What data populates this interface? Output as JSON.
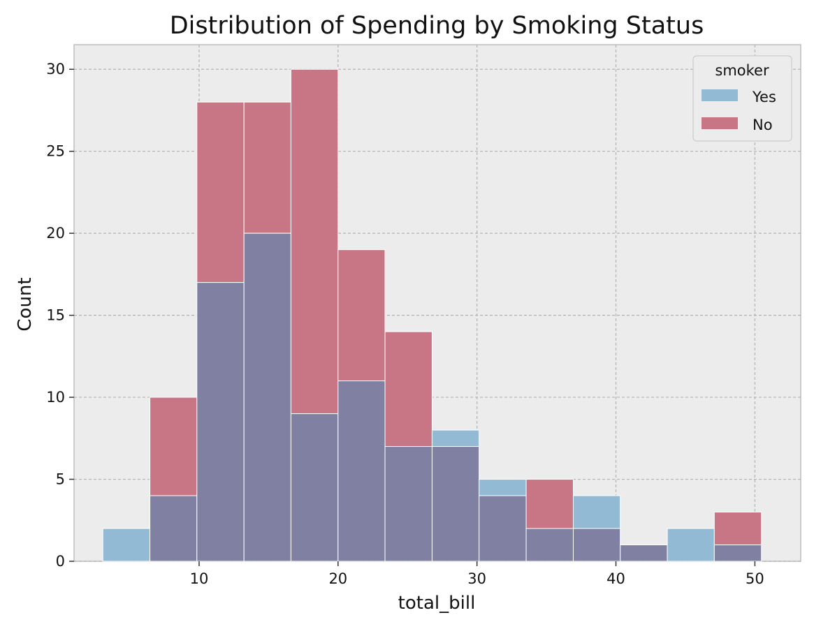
{
  "chart_data": {
    "type": "bar",
    "title": "Distribution of Spending by Smoking Status",
    "xlabel": "total_bill",
    "ylabel": "Count",
    "xlim": [
      1.0,
      53.3
    ],
    "ylim": [
      0,
      31.5
    ],
    "xticks": [
      10,
      20,
      30,
      40,
      50
    ],
    "yticks": [
      0,
      5,
      10,
      15,
      20,
      25,
      30
    ],
    "grid": true,
    "legend": {
      "title": "smoker",
      "placement": "top-right"
    },
    "bin_edges": [
      3.07,
      6.46,
      9.84,
      13.23,
      16.61,
      20.0,
      23.38,
      26.77,
      30.15,
      33.54,
      36.93,
      40.31,
      43.7,
      47.08,
      50.47
    ],
    "series": [
      {
        "name": "Yes",
        "color": "#92BAD4",
        "values": [
          2,
          4,
          17,
          20,
          9,
          11,
          7,
          8,
          5,
          2,
          4,
          1,
          2,
          1
        ]
      },
      {
        "name": "No",
        "color": "#C87686",
        "values": [
          0,
          10,
          28,
          28,
          30,
          19,
          14,
          7,
          4,
          5,
          2,
          1,
          0,
          3
        ]
      }
    ],
    "overlap_color": "#7F80A2"
  }
}
